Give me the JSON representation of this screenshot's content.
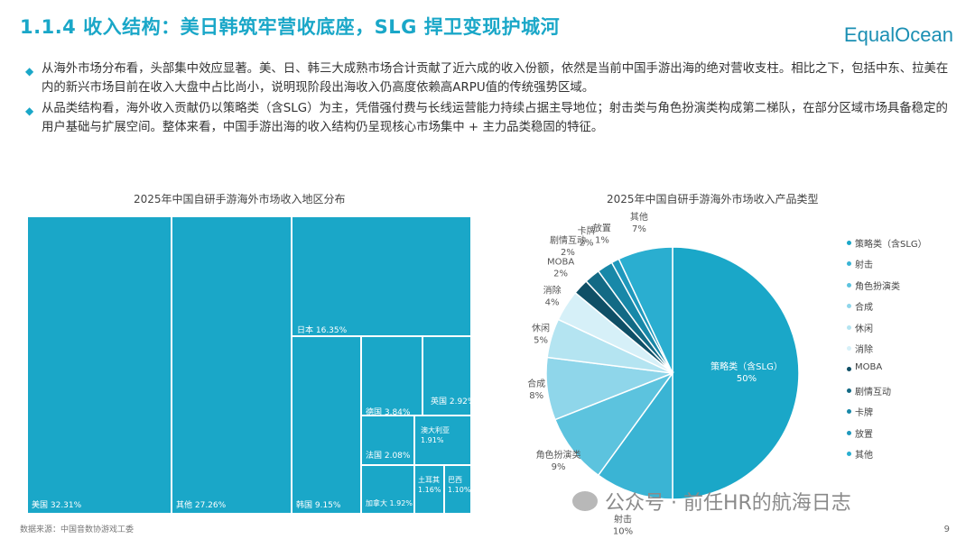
{
  "header": {
    "title": "1.1.4 收入结构：美日韩筑牢营收底座，SLG 捍卫变现护城河",
    "logo": "EqualOcean"
  },
  "bullets": [
    "从海外市场分布看，头部集中效应显著。美、日、韩三大成熟市场合计贡献了近六成的收入份额，依然是当前中国手游出海的绝对营收支柱。相比之下，包括中东、拉美在内的新兴市场目前在收入大盘中占比尚小，说明现阶段出海收入仍高度依赖高ARPU值的传统强势区域。",
    "从品类结构看，海外收入贡献仍以策略类（含SLG）为主，凭借强付费与长线运营能力持续占据主导地位；射击类与角色扮演类构成第二梯队，在部分区域市场具备稳定的用户基础与扩展空间。整体来看，中国手游出海的收入结构仍呈现核心市场集中 + 主力品类稳固的特征。"
  ],
  "footer": {
    "source": "数据来源：中国音数协游戏工委",
    "page": "9",
    "watermark": "公众号 · 前任HR的航海日志"
  },
  "chart_data": [
    {
      "type": "treemap",
      "title": "2025年中国自研手游海外市场收入地区分布",
      "color": "#1aa7c8",
      "items": [
        {
          "label": "美国 32.31%",
          "value": 32.31
        },
        {
          "label": "其他 27.26%",
          "value": 27.26
        },
        {
          "label": "日本 16.35%",
          "value": 16.35
        },
        {
          "label": "韩国 9.15%",
          "value": 9.15
        },
        {
          "label": "德国 3.84%",
          "value": 3.84
        },
        {
          "label": "英国 2.92%",
          "value": 2.92
        },
        {
          "label": "法国 2.08%",
          "value": 2.08
        },
        {
          "label": "澳大利亚 1.91%",
          "value": 1.91
        },
        {
          "label": "加拿大 1.92%",
          "value": 1.92
        },
        {
          "label": "土耳其 1.16%",
          "value": 1.16
        },
        {
          "label": "巴西 1.10%",
          "value": 1.1
        }
      ]
    },
    {
      "type": "pie",
      "title": "2025年中国自研手游海外市场收入产品类型",
      "slices": [
        {
          "name": "策略类（含SLG）",
          "value": 50,
          "label": "50%",
          "color": "#1aa7c8"
        },
        {
          "name": "射击",
          "value": 10,
          "label": "10%",
          "color": "#3ab4d4"
        },
        {
          "name": "角色扮演类",
          "value": 9,
          "label": "9%",
          "color": "#5cc3de"
        },
        {
          "name": "合成",
          "value": 8,
          "label": "8%",
          "color": "#8fd6ea"
        },
        {
          "name": "休闲",
          "value": 5,
          "label": "5%",
          "color": "#b4e4f1"
        },
        {
          "name": "消除",
          "value": 4,
          "label": "4%",
          "color": "#d6f0f8"
        },
        {
          "name": "MOBA",
          "value": 2,
          "label": "2%",
          "color": "#0f4f66"
        },
        {
          "name": "剧情互动",
          "value": 2,
          "label": "2%",
          "color": "#136a85"
        },
        {
          "name": "卡牌",
          "value": 2,
          "label": "2%",
          "color": "#1888a8"
        },
        {
          "name": "放置",
          "value": 1,
          "label": "1%",
          "color": "#1e98bc"
        },
        {
          "name": "其他",
          "value": 7,
          "label": "7%",
          "color": "#2aaed0"
        }
      ]
    }
  ]
}
